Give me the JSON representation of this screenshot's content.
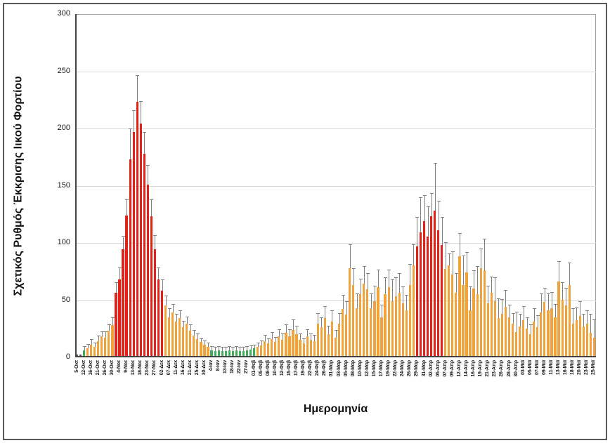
{
  "figure": {
    "y_axis_title": "Σχετικός Ρυθμός Έκκρισης Ιικού Φορτίου",
    "x_axis_title": "Ημερομηνία"
  },
  "chart_data": {
    "type": "bar",
    "title": "",
    "xlabel": "Ημερομηνία",
    "ylabel": "Σχετικός Ρυθμός Έκκρισης Ιικού Φορτίου",
    "ylim": [
      0,
      300
    ],
    "y_ticks": [
      0,
      50,
      100,
      150,
      200,
      250,
      300
    ],
    "grid": true,
    "legend": "none",
    "x_tick_note": "every second bar carries a date label",
    "x_tick_labels": [
      "5-Οκτ",
      "12-Οκτ",
      "16-Οκτ",
      "21-Οκτ",
      "26-Οκτ",
      "30-Οκτ",
      "4-Νοε",
      "9-Νοε",
      "13-Νοε",
      "18-Νοε",
      "23-Νοε",
      "27-Νοε",
      "02-Δεκ",
      "07-Δεκ",
      "11-Δεκ",
      "16-Δεκ",
      "21-Δεκ",
      "25-Δεκ",
      "30-Δεκ",
      "4-Ιαν",
      "8-Ιαν",
      "13-Ιαν",
      "18-Ιαν",
      "22-Ιαν",
      "27-Ιαν",
      "01-Φεβ",
      "05-Φεβ",
      "08-Φεβ",
      "10-Φεβ",
      "12-Φεβ",
      "15-Φεβ",
      "17-Φεβ",
      "19-Φεβ",
      "22-Φεβ",
      "24-Φεβ",
      "26-Φεβ",
      "01-Μαρ",
      "03-Μαρ",
      "05-Μαρ",
      "08-Μαρ",
      "10-Μαρ",
      "12-Μαρ",
      "15-Μαρ",
      "17-Μαρ",
      "19-Μαρ",
      "22-Μαρ",
      "24-Μαρ",
      "26-Μαρ",
      "29-Μαρ",
      "31-Μαρ",
      "02-Απρ",
      "05-Απρ",
      "07-Απρ",
      "09-Απρ",
      "12-Απρ",
      "14-Απρ",
      "16-Απρ",
      "19-Απρ",
      "21-Απρ",
      "23-Απρ",
      "26-Απρ",
      "28-Απρ",
      "30-Απρ",
      "03-Μαϊ",
      "05-Μαϊ",
      "07-Μαϊ",
      "09-Μαϊ",
      "11-Μαϊ",
      "13-Μαϊ",
      "16-Μαϊ",
      "18-Μαϊ",
      "20-Μαϊ",
      "23-Μαϊ",
      "25-Μαϊ"
    ],
    "bar_count": 147,
    "values": [
      1.5,
      1.5,
      5,
      7,
      10,
      8,
      13,
      17,
      16,
      22,
      27,
      55,
      67,
      93,
      123,
      172,
      196,
      222,
      203,
      177,
      150,
      122,
      93,
      67,
      57,
      44,
      34,
      38,
      30,
      33,
      25,
      28,
      22,
      18,
      15,
      12,
      10,
      8,
      5,
      4.5,
      5,
      4.5,
      4.5,
      5,
      4.5,
      5,
      4.5,
      4.5,
      5,
      5.5,
      6.5,
      8,
      9,
      13,
      11,
      15,
      12,
      17,
      14,
      20,
      17,
      23,
      19,
      14,
      11,
      17,
      14,
      13,
      28,
      25,
      33,
      19,
      30,
      16,
      28,
      41,
      36,
      77,
      62,
      42,
      54,
      63,
      58,
      42,
      48,
      60,
      34,
      54,
      60,
      48,
      52,
      55,
      46,
      40,
      62,
      79,
      96,
      108,
      118,
      104,
      122,
      127,
      110,
      97,
      76,
      79,
      71,
      55,
      87,
      62,
      73,
      40,
      59,
      54,
      77,
      75,
      46,
      55,
      48,
      33,
      37,
      43,
      34,
      28,
      21,
      26,
      31,
      24,
      19,
      30,
      25,
      38,
      47,
      40,
      42,
      34,
      65,
      49,
      44,
      62,
      28,
      31,
      35,
      26,
      28,
      20,
      16
    ],
    "error_plus": [
      0,
      0,
      3,
      3,
      4,
      3,
      4,
      4,
      5,
      5,
      6,
      9,
      10,
      11,
      13,
      26,
      18,
      23,
      19,
      18,
      16,
      14,
      12,
      10,
      9,
      8,
      7,
      7,
      6,
      6,
      5,
      6,
      5,
      4,
      4,
      3,
      3,
      3,
      3,
      3,
      3,
      3,
      3,
      3,
      3,
      3,
      3,
      3,
      3,
      3,
      3,
      3,
      4,
      5,
      4,
      5,
      4,
      6,
      5,
      7,
      6,
      8,
      7,
      5,
      4,
      6,
      5,
      5,
      9,
      8,
      10,
      7,
      9,
      6,
      9,
      12,
      11,
      20,
      14,
      12,
      13,
      15,
      14,
      12,
      13,
      15,
      10,
      14,
      15,
      18,
      16,
      17,
      14,
      13,
      18,
      18,
      25,
      30,
      22,
      26,
      20,
      41,
      25,
      24,
      23,
      10,
      20,
      17,
      20,
      25,
      17,
      20,
      15,
      24,
      16,
      27,
      15,
      14,
      20,
      17,
      12,
      14,
      10,
      9,
      17,
      10,
      12,
      9,
      8,
      11,
      10,
      16,
      12,
      14,
      13,
      11,
      17,
      15,
      15,
      19,
      13,
      11,
      12,
      10,
      11,
      16,
      15
    ],
    "color_runs": [
      [
        2,
        "gray"
      ],
      [
        1,
        "green"
      ],
      [
        8,
        "orange"
      ],
      [
        14,
        "red"
      ],
      [
        13,
        "orange"
      ],
      [
        13,
        "green"
      ],
      [
        45,
        "orange"
      ],
      [
        8,
        "red"
      ],
      [
        43,
        "orange"
      ]
    ],
    "palette": {
      "orange": "#F1A33B",
      "red": "#E32119",
      "green": "#3EAE5B",
      "gray": "#595959"
    },
    "error_bar_color": "#808080",
    "gridline_color": "#D9D9D9"
  }
}
